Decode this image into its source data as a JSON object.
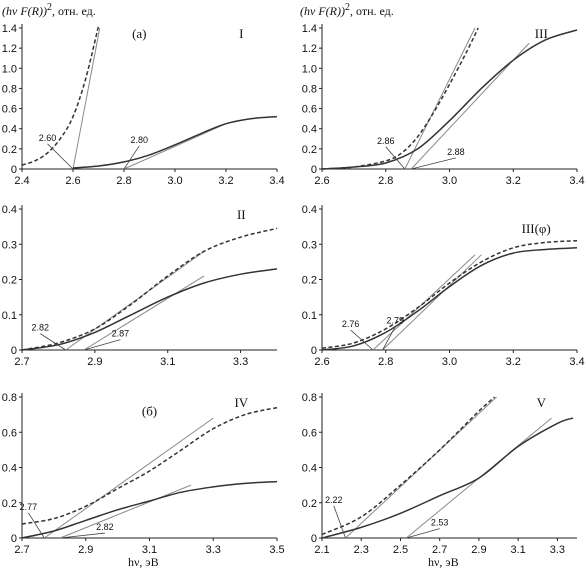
{
  "header_left": {
    "pre": "(hν F(R))",
    "sup": "2",
    "post": ", отн. ед."
  },
  "header_right": {
    "pre": "(hν F(R))",
    "sup": "2",
    "post": ", отн. ед."
  },
  "xlabel_left": "hν, эВ",
  "xlabel_right": "hν, эВ",
  "chart_data": [
    {
      "type": "line",
      "panel": "I",
      "label": "I",
      "sublabel": "(а)",
      "xlim": [
        2.4,
        3.4
      ],
      "ylim": [
        0,
        1.4
      ],
      "xticks": [
        "2.4",
        "2.6",
        "2.8",
        "3.0",
        "3.2",
        "3.4"
      ],
      "yticks": [
        "0",
        "0.2",
        "0.4",
        "0.6",
        "0.8",
        "1.0",
        "1.2",
        "1.4"
      ],
      "series": [
        {
          "style": "dashed",
          "x": [
            2.4,
            2.45,
            2.5,
            2.55,
            2.6,
            2.65,
            2.7
          ],
          "y": [
            0.04,
            0.08,
            0.16,
            0.3,
            0.52,
            0.9,
            1.42
          ]
        },
        {
          "style": "solid",
          "x": [
            2.6,
            2.7,
            2.8,
            2.9,
            3.0,
            3.1,
            3.2,
            3.3,
            3.4
          ],
          "y": [
            0.01,
            0.03,
            0.07,
            0.14,
            0.24,
            0.35,
            0.45,
            0.5,
            0.52
          ]
        }
      ],
      "fits": [
        {
          "x": [
            2.6,
            2.705
          ],
          "y": [
            0,
            1.4
          ]
        },
        {
          "x": [
            2.8,
            3.2
          ],
          "y": [
            0,
            0.45
          ]
        }
      ],
      "annotations": [
        {
          "text": "2.60",
          "at": [
            2.6,
            0
          ],
          "label_pos": [
            2.5,
            0.28
          ]
        },
        {
          "text": "2.80",
          "at": [
            2.8,
            0
          ],
          "label_pos": [
            2.86,
            0.26
          ]
        }
      ]
    },
    {
      "type": "line",
      "panel": "III",
      "label": "III",
      "xlim": [
        2.6,
        3.4
      ],
      "ylim": [
        0,
        1.4
      ],
      "xticks": [
        "2.6",
        "2.8",
        "3.0",
        "3.2",
        "3.4"
      ],
      "yticks": [
        "0",
        "0.2",
        "0.4",
        "0.6",
        "0.8",
        "1.0",
        "1.2",
        "1.4"
      ],
      "series": [
        {
          "style": "dashed",
          "x": [
            2.6,
            2.7,
            2.8,
            2.85,
            2.9,
            2.95,
            3.0,
            3.05,
            3.09
          ],
          "y": [
            0.0,
            0.02,
            0.08,
            0.16,
            0.32,
            0.56,
            0.84,
            1.14,
            1.4
          ]
        },
        {
          "style": "solid",
          "x": [
            2.6,
            2.7,
            2.8,
            2.9,
            3.0,
            3.1,
            3.2,
            3.3,
            3.4
          ],
          "y": [
            0.0,
            0.02,
            0.06,
            0.2,
            0.48,
            0.8,
            1.08,
            1.28,
            1.38
          ]
        }
      ],
      "fits": [
        {
          "x": [
            2.86,
            3.08
          ],
          "y": [
            0,
            1.4
          ]
        },
        {
          "x": [
            2.88,
            3.25
          ],
          "y": [
            0,
            1.25
          ]
        }
      ],
      "annotations": [
        {
          "text": "2.86",
          "at": [
            2.86,
            0
          ],
          "label_pos": [
            2.8,
            0.25
          ]
        },
        {
          "text": "2.88",
          "at": [
            2.88,
            0
          ],
          "label_pos": [
            3.02,
            0.14
          ]
        }
      ]
    },
    {
      "type": "line",
      "panel": "II",
      "label": "II",
      "xlim": [
        2.7,
        3.4
      ],
      "ylim": [
        0,
        0.4
      ],
      "xticks": [
        "2.7",
        "2.9",
        "3.1",
        "3.3"
      ],
      "yticks": [
        "0",
        "0.1",
        "0.2",
        "0.3",
        "0.4"
      ],
      "series": [
        {
          "style": "dashed",
          "x": [
            2.7,
            2.8,
            2.9,
            3.0,
            3.1,
            3.2,
            3.3,
            3.4
          ],
          "y": [
            0.0,
            0.02,
            0.06,
            0.13,
            0.21,
            0.28,
            0.32,
            0.345
          ]
        },
        {
          "style": "solid",
          "x": [
            2.7,
            2.8,
            2.9,
            3.0,
            3.1,
            3.2,
            3.3,
            3.4
          ],
          "y": [
            0.0,
            0.015,
            0.05,
            0.1,
            0.15,
            0.19,
            0.215,
            0.23
          ]
        }
      ],
      "fits": [
        {
          "x": [
            2.82,
            3.2
          ],
          "y": [
            0,
            0.28
          ]
        },
        {
          "x": [
            2.87,
            3.2
          ],
          "y": [
            0,
            0.21
          ]
        }
      ],
      "annotations": [
        {
          "text": "2.82",
          "at": [
            2.82,
            0
          ],
          "label_pos": [
            2.75,
            0.055
          ]
        },
        {
          "text": "2.87",
          "at": [
            2.87,
            0
          ],
          "label_pos": [
            2.97,
            0.038
          ]
        }
      ]
    },
    {
      "type": "line",
      "panel": "III(φ)",
      "label": "III(φ)",
      "xlim": [
        2.6,
        3.4
      ],
      "ylim": [
        0,
        0.4
      ],
      "xticks": [
        "2.6",
        "2.8",
        "3.0",
        "3.2",
        "3.4"
      ],
      "yticks": [
        "0",
        "0.1",
        "0.2",
        "0.3",
        "0.4"
      ],
      "series": [
        {
          "style": "dashed",
          "x": [
            2.6,
            2.7,
            2.8,
            2.9,
            3.0,
            3.1,
            3.2,
            3.3,
            3.4
          ],
          "y": [
            0.005,
            0.02,
            0.06,
            0.12,
            0.19,
            0.25,
            0.29,
            0.305,
            0.31
          ]
        },
        {
          "style": "solid",
          "x": [
            2.6,
            2.7,
            2.8,
            2.9,
            3.0,
            3.1,
            3.2,
            3.3,
            3.4
          ],
          "y": [
            0.0,
            0.012,
            0.05,
            0.11,
            0.18,
            0.24,
            0.275,
            0.285,
            0.29
          ]
        }
      ],
      "fits": [
        {
          "x": [
            2.76,
            3.08
          ],
          "y": [
            0,
            0.27
          ]
        },
        {
          "x": [
            2.79,
            3.1
          ],
          "y": [
            0,
            0.27
          ]
        }
      ],
      "annotations": [
        {
          "text": "2.76",
          "at": [
            2.76,
            0
          ],
          "label_pos": [
            2.69,
            0.065
          ]
        },
        {
          "text": "2.79",
          "at": [
            2.79,
            0
          ],
          "label_pos": [
            2.83,
            0.075
          ]
        }
      ]
    },
    {
      "type": "line",
      "panel": "IV",
      "label": "IV",
      "sublabel": "(б)",
      "xlim": [
        2.7,
        3.5
      ],
      "ylim": [
        0,
        0.8
      ],
      "xticks": [
        "2.7",
        "2.9",
        "3.1",
        "3.3",
        "3.5"
      ],
      "yticks": [
        "0",
        "0.2",
        "0.4",
        "0.6",
        "0.8"
      ],
      "series": [
        {
          "style": "dashed",
          "x": [
            2.7,
            2.8,
            2.9,
            3.0,
            3.1,
            3.2,
            3.3,
            3.4,
            3.5
          ],
          "y": [
            0.08,
            0.11,
            0.18,
            0.28,
            0.38,
            0.5,
            0.62,
            0.7,
            0.74
          ]
        },
        {
          "style": "solid",
          "x": [
            2.7,
            2.8,
            2.9,
            3.0,
            3.1,
            3.2,
            3.3,
            3.4,
            3.5
          ],
          "y": [
            0.0,
            0.04,
            0.1,
            0.16,
            0.21,
            0.26,
            0.29,
            0.31,
            0.32
          ]
        }
      ],
      "fits": [
        {
          "x": [
            2.77,
            3.3
          ],
          "y": [
            0,
            0.68
          ]
        },
        {
          "x": [
            2.82,
            3.23
          ],
          "y": [
            0,
            0.3
          ]
        }
      ],
      "annotations": [
        {
          "text": "2.77",
          "at": [
            2.77,
            0
          ],
          "label_pos": [
            2.72,
            0.16
          ]
        },
        {
          "text": "2.82",
          "at": [
            2.82,
            0
          ],
          "label_pos": [
            2.96,
            0.045
          ]
        }
      ]
    },
    {
      "type": "line",
      "panel": "V",
      "label": "V",
      "xlim": [
        2.1,
        3.4
      ],
      "ylim": [
        0,
        0.8
      ],
      "xticks": [
        "2.1",
        "2.3",
        "2.5",
        "2.7",
        "2.9",
        "3.1",
        "3.3"
      ],
      "yticks": [
        "0",
        "0.2",
        "0.4",
        "0.6",
        "0.8"
      ],
      "series": [
        {
          "style": "dashed",
          "x": [
            2.1,
            2.3,
            2.5,
            2.7,
            2.9,
            2.98
          ],
          "y": [
            0.02,
            0.12,
            0.3,
            0.5,
            0.72,
            0.8
          ]
        },
        {
          "style": "solid",
          "x": [
            2.1,
            2.3,
            2.5,
            2.7,
            2.9,
            3.1,
            3.3,
            3.38
          ],
          "y": [
            0.0,
            0.06,
            0.14,
            0.24,
            0.34,
            0.52,
            0.65,
            0.68
          ]
        }
      ],
      "fits": [
        {
          "x": [
            2.22,
            2.99
          ],
          "y": [
            0,
            0.8
          ]
        },
        {
          "x": [
            2.53,
            3.27
          ],
          "y": [
            0,
            0.68
          ]
        }
      ],
      "annotations": [
        {
          "text": "2.22",
          "at": [
            2.22,
            0
          ],
          "label_pos": [
            2.16,
            0.2
          ]
        },
        {
          "text": "2.53",
          "at": [
            2.53,
            0
          ],
          "label_pos": [
            2.7,
            0.07
          ]
        }
      ]
    }
  ]
}
